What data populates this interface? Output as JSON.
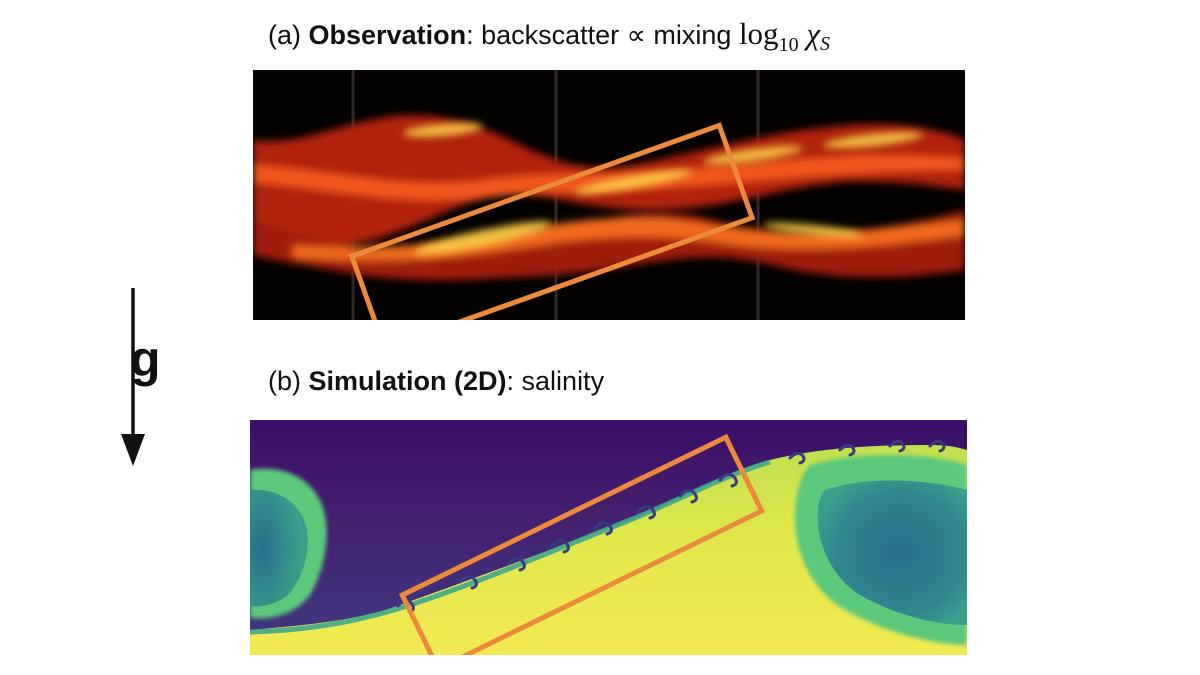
{
  "panel_a": {
    "label": "(a)",
    "title_bold": "Observation",
    "title_rest": ": backscatter ∝ mixing ",
    "math_log": "log",
    "math_sub": "10",
    "math_var": "χ",
    "math_var_sub": "S"
  },
  "panel_b": {
    "label": "(b)",
    "title_bold": "Simulation (2D)",
    "title_rest": ": salinity"
  },
  "gravity": {
    "label": "g"
  },
  "colors": {
    "highlight_box": "#ec8a3c",
    "obs_background": "#050202",
    "obs_hot": "#ffd84a",
    "sim_low": "#3b0f6b",
    "sim_mid": "#2f8a8f",
    "sim_high": "#e8e84a"
  }
}
